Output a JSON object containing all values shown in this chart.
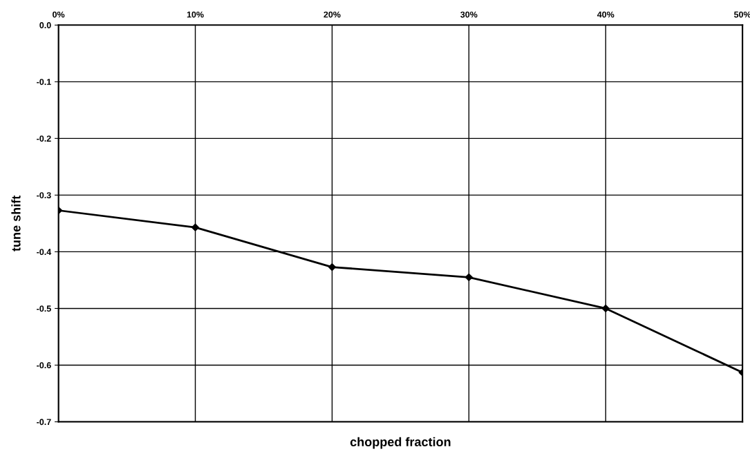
{
  "chart_data": {
    "type": "line",
    "xlabel": "chopped fraction",
    "ylabel": "tune shift",
    "x": [
      0,
      10,
      20,
      30,
      40,
      50
    ],
    "series": [
      {
        "color": "#000000",
        "axis": "x2",
        "values": [
          -0.327,
          -0.357,
          -0.427,
          -0.445,
          -0.5,
          -0.613
        ]
      }
    ],
    "x2lim": [
      0,
      50
    ],
    "x2ticks": [
      {
        "value": 0,
        "label": "0%"
      },
      {
        "value": 10,
        "label": "10%"
      },
      {
        "value": 20,
        "label": "20%"
      },
      {
        "value": 30,
        "label": "30%"
      },
      {
        "value": 40,
        "label": "40%"
      },
      {
        "value": 50,
        "label": "50%"
      }
    ],
    "ylim": [
      -0.7,
      0.0
    ],
    "yticks": [
      {
        "value": 0.0,
        "label": "0.0"
      },
      -0.1,
      -0.2,
      -0.3,
      -0.4,
      -0.5,
      -0.6,
      -0.7
    ],
    "grid": true,
    "marker": "diamond",
    "line_style": "solid"
  }
}
